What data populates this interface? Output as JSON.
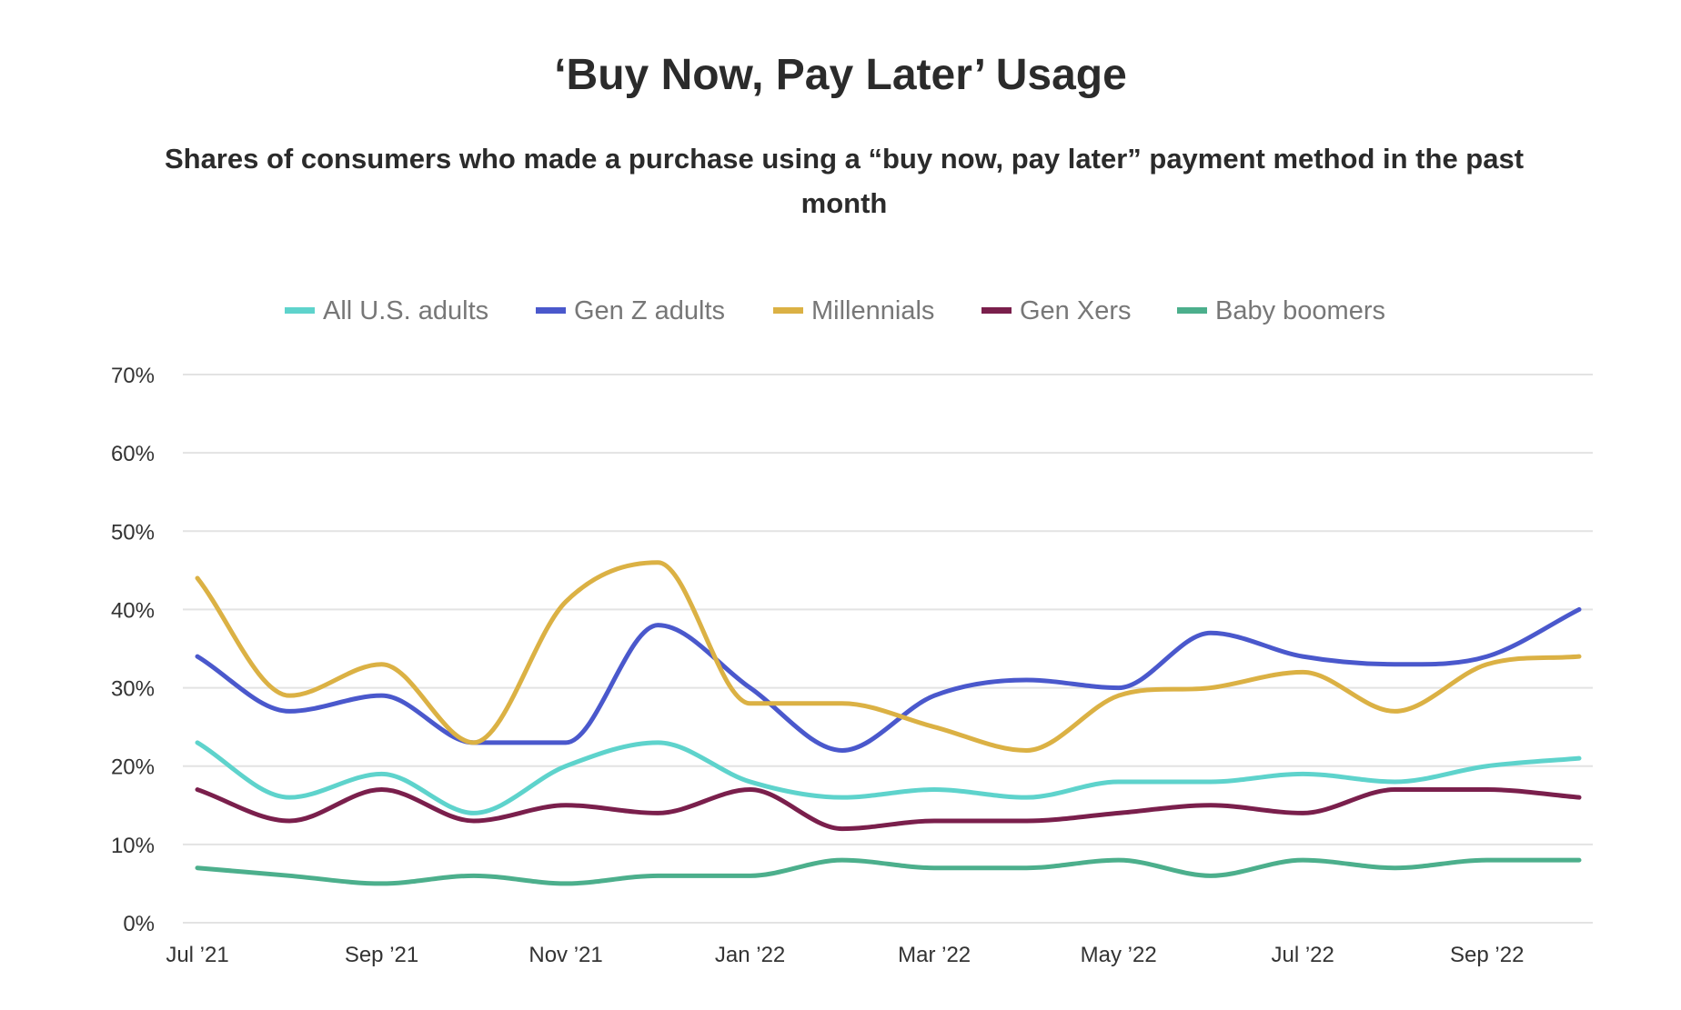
{
  "chart_data": {
    "type": "line",
    "title": "‘Buy Now, Pay Later’ Usage",
    "subtitle": "Shares of consumers who made a purchase using a “buy now, pay later” payment method in the past month",
    "subtitle_lines": [
      "Shares of consumers who made a purchase using a “buy now, pay later” payment method in the past",
      "month"
    ],
    "xlabel": "",
    "ylabel": "",
    "ylim": [
      0,
      70
    ],
    "yticks": [
      0,
      10,
      20,
      30,
      40,
      50,
      60,
      70
    ],
    "ytick_labels": [
      "0%",
      "10%",
      "20%",
      "30%",
      "40%",
      "50%",
      "60%",
      "70%"
    ],
    "x": [
      "Jul '21",
      "Aug '21",
      "Sep '21",
      "Oct '21",
      "Nov '21",
      "Dec '21",
      "Jan '22",
      "Feb '22",
      "Mar '22",
      "Apr '22",
      "May '22",
      "Jun '22",
      "Jul '22",
      "Aug '22",
      "Sep '22",
      "Oct '22"
    ],
    "xtick_labels": [
      "Jul ’21",
      "Sep ’21",
      "Nov ’21",
      "Jan ’22",
      "Mar ’22",
      "May ’22",
      "Jul ’22",
      "Sep ’22"
    ],
    "xtick_index": [
      0,
      2,
      4,
      6,
      8,
      10,
      12,
      14
    ],
    "grid": true,
    "legend_position": "top-center",
    "series": [
      {
        "name": "All U.S. adults",
        "color": "#5ed3cc",
        "values": [
          23,
          16,
          19,
          14,
          20,
          23,
          18,
          16,
          17,
          16,
          18,
          18,
          19,
          18,
          20,
          21
        ]
      },
      {
        "name": "Gen Z adults",
        "color": "#4a58cc",
        "values": [
          34,
          27,
          29,
          23,
          23,
          38,
          30,
          22,
          29,
          31,
          30,
          37,
          34,
          33,
          34,
          40
        ]
      },
      {
        "name": "Millennials",
        "color": "#dbb144",
        "values": [
          44,
          29,
          33,
          23,
          41,
          46,
          28,
          28,
          25,
          22,
          29,
          30,
          32,
          27,
          33,
          34
        ]
      },
      {
        "name": "Gen Xers",
        "color": "#7a1f4c",
        "values": [
          17,
          13,
          17,
          13,
          15,
          14,
          17,
          12,
          13,
          13,
          14,
          15,
          14,
          17,
          17,
          16
        ]
      },
      {
        "name": "Baby boomers",
        "color": "#4caf8c",
        "values": [
          7,
          6,
          5,
          6,
          5,
          6,
          6,
          8,
          7,
          7,
          8,
          6,
          8,
          7,
          8,
          8
        ]
      }
    ]
  }
}
